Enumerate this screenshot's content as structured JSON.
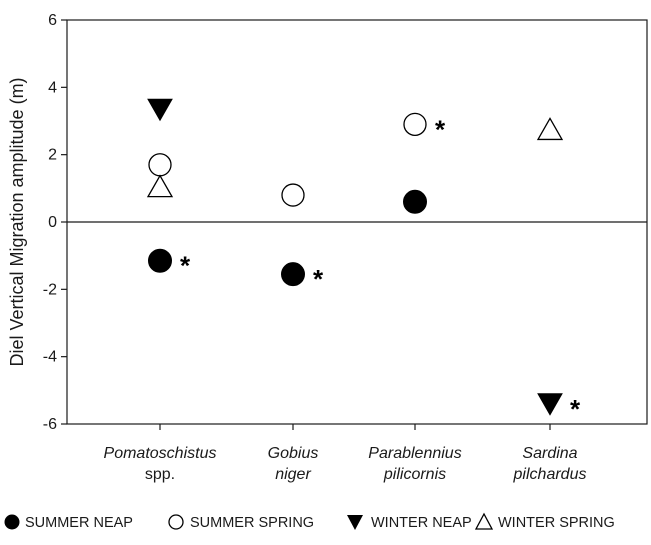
{
  "chart_data": {
    "type": "scatter",
    "ylabel": "Diel Vertical Migration amplitude (m)",
    "ylim": [
      -6,
      6
    ],
    "yticks": [
      "6",
      "4",
      "2",
      "0",
      "-2",
      "-4",
      "-6"
    ],
    "zero_line": true,
    "categories": [
      {
        "line1": "Pomatoschistus",
        "line2": "spp.",
        "italic2": false
      },
      {
        "line1": "Gobius",
        "line2": "niger",
        "italic2": true
      },
      {
        "line1": "Parablennius",
        "line2": "pilicornis",
        "italic2": true
      },
      {
        "line1": "Sardina",
        "line2": "pilchardus",
        "italic2": true
      }
    ],
    "series": [
      {
        "name": "SUMMER NEAP",
        "marker": "filled-circle",
        "points": [
          {
            "category": 0,
            "y": -1.15,
            "significant": true
          },
          {
            "category": 1,
            "y": -1.55,
            "significant": true
          },
          {
            "category": 2,
            "y": 0.6,
            "significant": false
          }
        ]
      },
      {
        "name": "SUMMER SPRING",
        "marker": "open-circle",
        "points": [
          {
            "category": 0,
            "y": 1.7,
            "significant": false
          },
          {
            "category": 1,
            "y": 0.8,
            "significant": false
          },
          {
            "category": 2,
            "y": 2.9,
            "significant": true
          }
        ]
      },
      {
        "name": "WINTER NEAP",
        "marker": "filled-triangle-down",
        "points": [
          {
            "category": 0,
            "y": 3.35,
            "significant": false
          },
          {
            "category": 3,
            "y": -5.4,
            "significant": true
          }
        ]
      },
      {
        "name": "WINTER SPRING",
        "marker": "open-triangle-up",
        "points": [
          {
            "category": 0,
            "y": 1.05,
            "significant": false
          },
          {
            "category": 3,
            "y": 2.75,
            "significant": false
          }
        ]
      }
    ],
    "significance_marker": "*",
    "legend_position": "bottom"
  }
}
